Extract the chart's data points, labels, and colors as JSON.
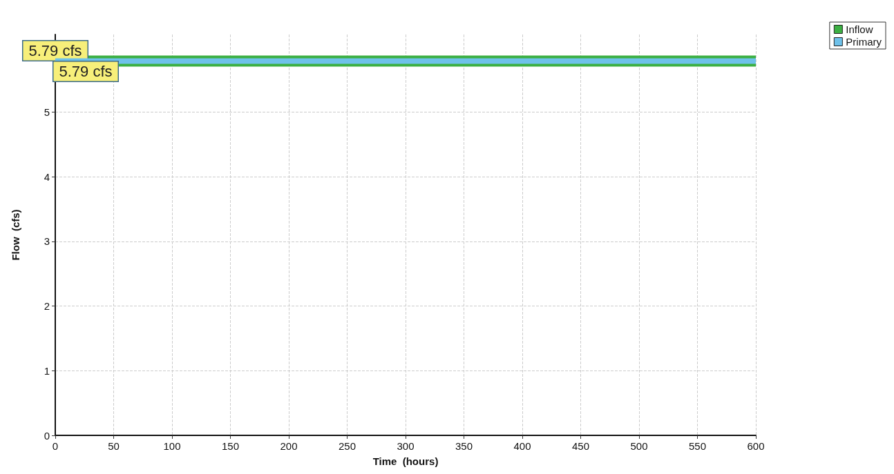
{
  "chart_data": {
    "type": "line",
    "xlabel": "Time  (hours)",
    "ylabel": "Flow  (cfs)",
    "x": [
      0,
      600
    ],
    "series": [
      {
        "name": "Inflow",
        "color": "#3cb043",
        "values": [
          5.79,
          5.79
        ],
        "value_labels": [
          "5.79 cfs",
          null
        ]
      },
      {
        "name": "Primary",
        "color": "#6ec1ea",
        "values": [
          5.79,
          5.79
        ],
        "value_labels": [
          "5.79 cfs",
          null
        ]
      }
    ],
    "xlim": [
      0,
      600
    ],
    "xticks": [
      0,
      50,
      100,
      150,
      200,
      250,
      300,
      350,
      400,
      450,
      500,
      550,
      600
    ],
    "ylim": [
      0,
      6.2
    ],
    "yticks": [
      0,
      1,
      2,
      3,
      4,
      5
    ],
    "grid": true,
    "legend": "top right"
  }
}
